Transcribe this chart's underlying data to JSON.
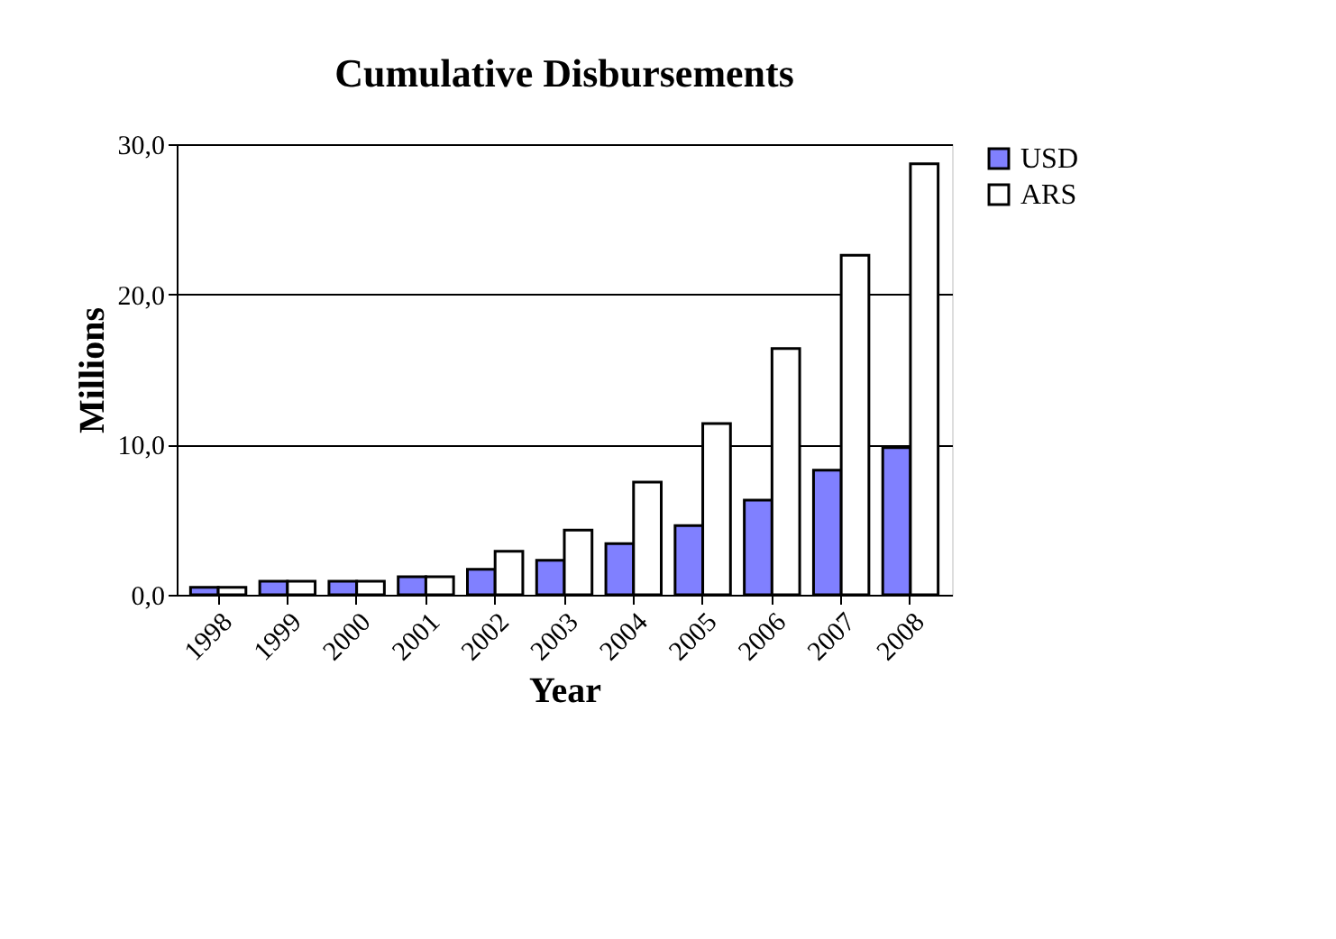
{
  "chart_data": {
    "type": "bar",
    "title": "Cumulative Disbursements",
    "xlabel": "Year",
    "ylabel": "Millions",
    "categories": [
      "1998",
      "1999",
      "2000",
      "2001",
      "2002",
      "2003",
      "2004",
      "2005",
      "2006",
      "2007",
      "2008"
    ],
    "series": [
      {
        "name": "USD",
        "color": "#8080ff",
        "values": [
          0.5,
          0.9,
          0.9,
          1.2,
          1.7,
          2.3,
          3.4,
          4.6,
          6.3,
          8.3,
          9.8
        ]
      },
      {
        "name": "ARS",
        "color": "#ffffff",
        "values": [
          0.5,
          0.9,
          0.9,
          1.2,
          2.9,
          4.3,
          7.5,
          11.4,
          16.4,
          22.6,
          28.7
        ]
      }
    ],
    "ylim": [
      0,
      30
    ],
    "yticks": [
      {
        "value": 0,
        "label": "0,0"
      },
      {
        "value": 10,
        "label": "10,0"
      },
      {
        "value": 20,
        "label": "20,0"
      },
      {
        "value": 30,
        "label": "30,0"
      }
    ],
    "grid": "y",
    "legend": "right"
  }
}
